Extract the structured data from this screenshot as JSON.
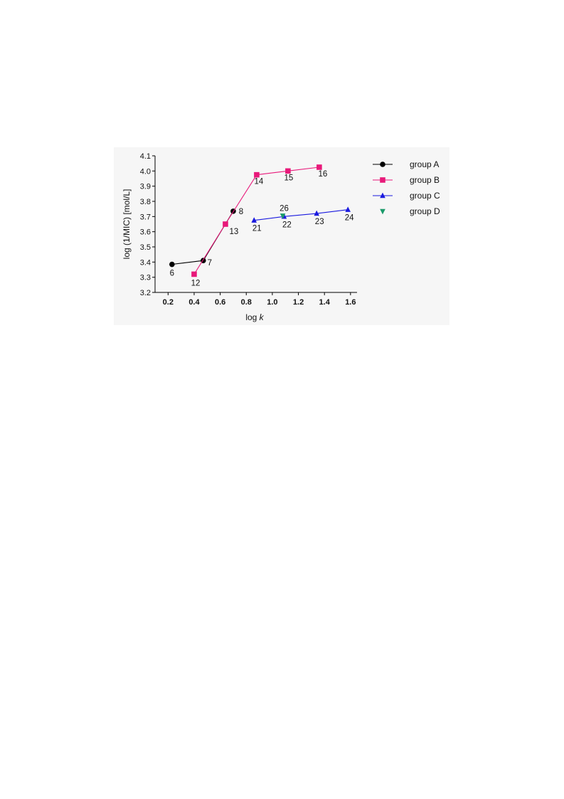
{
  "chart_data": {
    "type": "line",
    "xlabel_prefix": "log ",
    "xlabel_var": "k",
    "ylabel": "log (1/MIC) [mol/L]",
    "xlim": [
      0.1,
      1.65
    ],
    "ylim": [
      3.2,
      4.1
    ],
    "xticks": [
      0.2,
      0.4,
      0.6,
      0.8,
      1.0,
      1.2,
      1.4,
      1.6
    ],
    "xtick_labels": [
      "0.2",
      "0.4",
      "0.6",
      "0.8",
      "1.0",
      "1.2",
      "1.4",
      "1.6"
    ],
    "yticks": [
      3.2,
      3.3,
      3.4,
      3.5,
      3.6,
      3.7,
      3.8,
      3.9,
      4.0,
      4.1
    ],
    "ytick_labels": [
      "3.2",
      "3.3",
      "3.4",
      "3.5",
      "3.6",
      "3.7",
      "3.8",
      "3.9",
      "4.0",
      "4.1"
    ],
    "grid": false,
    "legend_position": "right",
    "series": [
      {
        "name": "group A",
        "color": "#000000",
        "marker": "circle",
        "points": [
          {
            "x": 0.23,
            "y": 3.385,
            "label": "6"
          },
          {
            "x": 0.47,
            "y": 3.41,
            "label": "7"
          },
          {
            "x": 0.7,
            "y": 3.735,
            "label": "8"
          }
        ]
      },
      {
        "name": "group B",
        "color": "#e8197a",
        "marker": "square",
        "points": [
          {
            "x": 0.4,
            "y": 3.32,
            "label": "12"
          },
          {
            "x": 0.64,
            "y": 3.65,
            "label": "13"
          },
          {
            "x": 0.88,
            "y": 3.975,
            "label": "14"
          },
          {
            "x": 1.12,
            "y": 4.0,
            "label": "15"
          },
          {
            "x": 1.36,
            "y": 4.025,
            "label": "16"
          }
        ]
      },
      {
        "name": "group C",
        "color": "#1a1adf",
        "marker": "triangle-up",
        "points": [
          {
            "x": 0.86,
            "y": 3.675,
            "label": "21"
          },
          {
            "x": 1.09,
            "y": 3.7,
            "label": "22"
          },
          {
            "x": 1.34,
            "y": 3.72,
            "label": "23"
          },
          {
            "x": 1.58,
            "y": 3.745,
            "label": "24"
          }
        ]
      },
      {
        "name": "group D",
        "color": "#1a9a6a",
        "marker": "triangle-down",
        "points": [
          {
            "x": 1.08,
            "y": 3.705,
            "label": "26"
          }
        ]
      }
    ]
  }
}
